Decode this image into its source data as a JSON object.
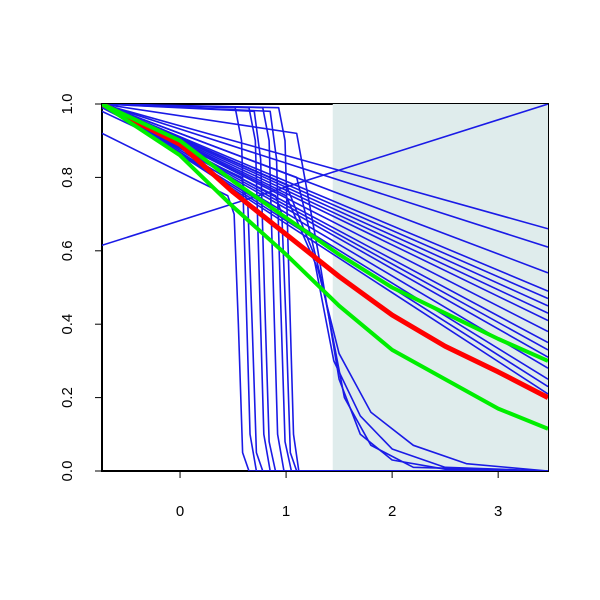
{
  "chart_data": {
    "type": "line",
    "xlim": [
      -0.736,
      3.47
    ],
    "ylim": [
      0,
      1
    ],
    "xticks": [
      0,
      1,
      2,
      3
    ],
    "yticks": [
      {
        "value": 0,
        "label": "0.0"
      },
      0.2,
      0.4,
      0.6,
      0.8,
      {
        "value": 1,
        "label": "1.0"
      }
    ],
    "shaded_x": [
      1.44,
      3.47
    ],
    "shade_color": "#dfecec",
    "series": [
      {
        "color": "#1a1ae6",
        "width": 1.6,
        "x": [
          -0.736,
          3.47
        ],
        "values": [
          1,
          0.66
        ]
      },
      {
        "color": "#1a1ae6",
        "width": 1.6,
        "x": [
          -0.736,
          3.47
        ],
        "values": [
          1,
          0.61
        ]
      },
      {
        "color": "#1a1ae6",
        "width": 1.6,
        "x": [
          -0.736,
          3.47
        ],
        "values": [
          1,
          0.54
        ]
      },
      {
        "color": "#1a1ae6",
        "width": 1.6,
        "x": [
          -0.736,
          3.47
        ],
        "values": [
          1,
          0.49
        ]
      },
      {
        "color": "#1a1ae6",
        "width": 1.6,
        "x": [
          -0.736,
          3.47
        ],
        "values": [
          1,
          0.47
        ]
      },
      {
        "color": "#1a1ae6",
        "width": 1.6,
        "x": [
          -0.736,
          3.47
        ],
        "values": [
          1,
          0.45
        ]
      },
      {
        "color": "#1a1ae6",
        "width": 1.6,
        "x": [
          -0.736,
          3.47
        ],
        "values": [
          1,
          0.43
        ]
      },
      {
        "color": "#1a1ae6",
        "width": 1.6,
        "x": [
          -0.736,
          3.47
        ],
        "values": [
          1,
          0.41
        ]
      },
      {
        "color": "#1a1ae6",
        "width": 1.6,
        "x": [
          -0.736,
          3.47
        ],
        "values": [
          1,
          0.38
        ]
      },
      {
        "color": "#1a1ae6",
        "width": 1.6,
        "x": [
          -0.736,
          3.47
        ],
        "values": [
          1,
          0.35
        ]
      },
      {
        "color": "#1a1ae6",
        "width": 1.6,
        "x": [
          -0.736,
          3.47
        ],
        "values": [
          1,
          0.33
        ]
      },
      {
        "color": "#1a1ae6",
        "width": 1.6,
        "x": [
          -0.736,
          3.47
        ],
        "values": [
          1,
          0.31
        ]
      },
      {
        "color": "#1a1ae6",
        "width": 1.6,
        "x": [
          -0.736,
          3.47
        ],
        "values": [
          1,
          0.28
        ]
      },
      {
        "color": "#1a1ae6",
        "width": 1.6,
        "x": [
          -0.736,
          3.47
        ],
        "values": [
          1,
          0.25
        ]
      },
      {
        "color": "#1a1ae6",
        "width": 1.6,
        "x": [
          -0.736,
          3.47
        ],
        "values": [
          1,
          0.23
        ]
      },
      {
        "color": "#1a1ae6",
        "width": 1.6,
        "x": [
          -0.736,
          3.47
        ],
        "values": [
          1,
          0.21
        ]
      },
      {
        "color": "#1a1ae6",
        "width": 1.6,
        "x": [
          -0.736,
          3.47
        ],
        "values": [
          0.615,
          1
        ]
      },
      {
        "color": "#1a1ae6",
        "width": 1.6,
        "x": [
          -0.736,
          0.45,
          0.51,
          0.55,
          0.59,
          0.65,
          3.47
        ],
        "values": [
          0.92,
          0.75,
          0.7,
          0.4,
          0.05,
          0,
          0
        ]
      },
      {
        "color": "#1a1ae6",
        "width": 1.6,
        "x": [
          -0.736,
          0.52,
          0.58,
          0.62,
          0.66,
          0.72,
          3.47
        ],
        "values": [
          1,
          0.99,
          0.9,
          0.5,
          0.1,
          0,
          0
        ]
      },
      {
        "color": "#1a1ae6",
        "width": 1.6,
        "x": [
          -0.736,
          0.58,
          0.64,
          0.68,
          0.72,
          0.78,
          3.47
        ],
        "values": [
          0.98,
          0.8,
          0.72,
          0.4,
          0.05,
          0,
          0
        ]
      },
      {
        "color": "#1a1ae6",
        "width": 1.6,
        "x": [
          -0.736,
          0.65,
          0.71,
          0.75,
          0.79,
          0.85,
          3.47
        ],
        "values": [
          1,
          0.99,
          0.9,
          0.5,
          0.1,
          0,
          0
        ]
      },
      {
        "color": "#1a1ae6",
        "width": 1.6,
        "x": [
          -0.736,
          0.7,
          0.76,
          0.8,
          0.84,
          0.9,
          3.47
        ],
        "values": [
          1,
          0.98,
          0.85,
          0.45,
          0.08,
          0,
          0
        ]
      },
      {
        "color": "#1a1ae6",
        "width": 1.6,
        "x": [
          -0.736,
          0.78,
          0.84,
          0.88,
          0.92,
          0.98,
          3.47
        ],
        "values": [
          1,
          0.99,
          0.9,
          0.5,
          0.1,
          0,
          0
        ]
      },
      {
        "color": "#1a1ae6",
        "width": 1.6,
        "x": [
          -0.736,
          0.85,
          0.91,
          0.95,
          0.99,
          1.05,
          3.47
        ],
        "values": [
          1,
          0.98,
          0.85,
          0.45,
          0.08,
          0,
          0
        ]
      },
      {
        "color": "#1a1ae6",
        "width": 1.6,
        "x": [
          -0.736,
          0.9,
          0.96,
          1.0,
          1.04,
          1.1,
          3.47
        ],
        "values": [
          0.99,
          0.75,
          0.7,
          0.4,
          0.05,
          0,
          0
        ]
      },
      {
        "color": "#1a1ae6",
        "width": 1.6,
        "x": [
          -0.736,
          0.93,
          0.99,
          1.03,
          1.07,
          1.12,
          3.47
        ],
        "values": [
          1,
          0.99,
          0.9,
          0.5,
          0.1,
          0,
          0
        ]
      },
      {
        "color": "#1a1ae6",
        "width": 1.6,
        "x": [
          -0.736,
          1.1,
          1.3,
          1.5,
          1.7,
          2.0,
          2.5,
          3.47
        ],
        "values": [
          1,
          0.92,
          0.6,
          0.25,
          0.1,
          0.03,
          0.005,
          0
        ]
      },
      {
        "color": "#1a1ae6",
        "width": 1.6,
        "x": [
          -0.736,
          1.0,
          1.25,
          1.45,
          1.7,
          2.0,
          2.5,
          3.47
        ],
        "values": [
          1,
          0.78,
          0.6,
          0.3,
          0.15,
          0.06,
          0.01,
          0
        ]
      },
      {
        "color": "#1a1ae6",
        "width": 1.6,
        "x": [
          -0.736,
          1.0,
          1.3,
          1.5,
          1.8,
          2.2,
          2.7,
          3.47
        ],
        "values": [
          1,
          0.75,
          0.55,
          0.32,
          0.16,
          0.07,
          0.02,
          0
        ]
      },
      {
        "color": "#1a1ae6",
        "width": 1.6,
        "x": [
          -0.736,
          1.1,
          1.35,
          1.55,
          1.8,
          2.2,
          3.47
        ],
        "values": [
          1,
          0.8,
          0.5,
          0.2,
          0.07,
          0.01,
          0
        ]
      },
      {
        "color": "#ff0000",
        "width": 5,
        "x": [
          -0.736,
          0,
          0.5,
          1,
          1.5,
          2,
          2.5,
          3,
          3.47
        ],
        "values": [
          1,
          0.89,
          0.76,
          0.645,
          0.53,
          0.425,
          0.34,
          0.27,
          0.2
        ]
      },
      {
        "color": "#00ee00",
        "width": 4,
        "x": [
          -0.736,
          0,
          0.5,
          1,
          1.5,
          2,
          2.5,
          3,
          3.47
        ],
        "values": [
          1,
          0.86,
          0.72,
          0.59,
          0.45,
          0.33,
          0.25,
          0.17,
          0.115
        ]
      },
      {
        "color": "#00ee00",
        "width": 4,
        "x": [
          -0.736,
          0,
          0.5,
          1,
          1.5,
          2,
          2.5,
          3,
          3.47
        ],
        "values": [
          1,
          0.9,
          0.79,
          0.69,
          0.59,
          0.5,
          0.43,
          0.36,
          0.3
        ]
      }
    ]
  }
}
